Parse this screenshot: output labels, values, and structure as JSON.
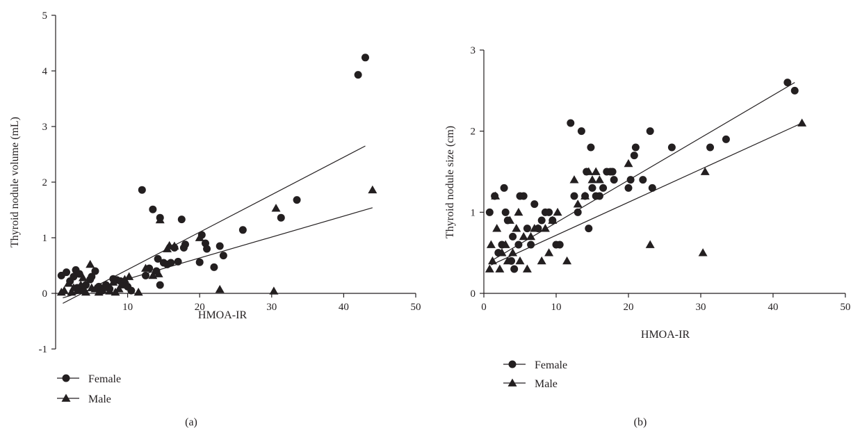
{
  "chart_data": [
    {
      "type": "scatter",
      "panel_label": "(a)",
      "xlabel": "HMOA-IR",
      "ylabel": "Thyroid nodule volume (mL)",
      "xlim": [
        0,
        50
      ],
      "ylim": [
        -1,
        5
      ],
      "xticks": [
        10,
        20,
        30,
        40,
        50
      ],
      "yticks": [
        -1,
        0,
        1,
        2,
        3,
        4,
        5
      ],
      "grid": false,
      "legend_position": "bottom-left",
      "series": [
        {
          "name": "Female",
          "marker": "circle",
          "points": [
            [
              0.8,
              0.32
            ],
            [
              1.5,
              0.38
            ],
            [
              2.0,
              0.22
            ],
            [
              2.5,
              0.3
            ],
            [
              2.8,
              0.42
            ],
            [
              3.0,
              0.1
            ],
            [
              3.3,
              0.35
            ],
            [
              3.8,
              0.05
            ],
            [
              4.2,
              0.15
            ],
            [
              4.8,
              0.25
            ],
            [
              5.0,
              0.3
            ],
            [
              5.5,
              0.4
            ],
            [
              6.0,
              0.12
            ],
            [
              6.5,
              0.05
            ],
            [
              7.0,
              0.15
            ],
            [
              7.5,
              0.08
            ],
            [
              8.0,
              0.26
            ],
            [
              8.5,
              0.24
            ],
            [
              9.0,
              0.22
            ],
            [
              9.5,
              0.2
            ],
            [
              10.0,
              0.12
            ],
            [
              10.5,
              0.05
            ],
            [
              12.0,
              1.86
            ],
            [
              12.5,
              0.32
            ],
            [
              13.0,
              0.45
            ],
            [
              13.5,
              1.51
            ],
            [
              14.0,
              0.4
            ],
            [
              14.2,
              0.62
            ],
            [
              14.5,
              1.36
            ],
            [
              14.5,
              0.15
            ],
            [
              15.0,
              0.55
            ],
            [
              15.5,
              0.52
            ],
            [
              16.0,
              0.55
            ],
            [
              16.5,
              0.82
            ],
            [
              17.0,
              0.57
            ],
            [
              17.5,
              1.33
            ],
            [
              17.8,
              0.82
            ],
            [
              18.0,
              0.88
            ],
            [
              20.0,
              0.56
            ],
            [
              20.3,
              1.05
            ],
            [
              20.8,
              0.9
            ],
            [
              21.0,
              0.8
            ],
            [
              22.0,
              0.47
            ],
            [
              22.8,
              0.85
            ],
            [
              23.3,
              0.68
            ],
            [
              26.0,
              1.14
            ],
            [
              31.3,
              1.36
            ],
            [
              33.5,
              1.68
            ],
            [
              42.0,
              3.93
            ],
            [
              43.0,
              4.24
            ]
          ]
        },
        {
          "name": "Male",
          "marker": "triangle",
          "points": [
            [
              0.8,
              0.02
            ],
            [
              1.2,
              0.05
            ],
            [
              1.8,
              0.18
            ],
            [
              2.2,
              0.02
            ],
            [
              2.5,
              0.1
            ],
            [
              3.0,
              0.05
            ],
            [
              3.5,
              0.15
            ],
            [
              3.8,
              0.28
            ],
            [
              4.2,
              0.02
            ],
            [
              4.8,
              0.52
            ],
            [
              5.0,
              0.1
            ],
            [
              5.5,
              0.08
            ],
            [
              6.0,
              0.02
            ],
            [
              6.5,
              0.06
            ],
            [
              7.0,
              0.12
            ],
            [
              7.5,
              0.04
            ],
            [
              8.0,
              0.2
            ],
            [
              8.3,
              0.02
            ],
            [
              8.8,
              0.08
            ],
            [
              9.2,
              0.15
            ],
            [
              9.6,
              0.25
            ],
            [
              10.2,
              0.3
            ],
            [
              11.5,
              0.02
            ],
            [
              12.5,
              0.45
            ],
            [
              13.5,
              0.32
            ],
            [
              14.3,
              0.35
            ],
            [
              14.5,
              1.32
            ],
            [
              15.5,
              0.8
            ],
            [
              15.8,
              0.86
            ],
            [
              16.5,
              0.85
            ],
            [
              20.0,
              1.0
            ],
            [
              22.8,
              0.07
            ],
            [
              30.3,
              0.04
            ],
            [
              30.6,
              1.53
            ],
            [
              44.0,
              1.86
            ]
          ]
        }
      ],
      "fit_lines": [
        {
          "series": "Female",
          "x": [
            1,
            43
          ],
          "y": [
            -0.18,
            2.65
          ]
        },
        {
          "series": "Male",
          "x": [
            1,
            44
          ],
          "y": [
            -0.08,
            1.54
          ]
        }
      ]
    },
    {
      "type": "scatter",
      "panel_label": "(b)",
      "xlabel": "HMOA-IR",
      "ylabel": "Thyroid nodule size (cm)",
      "xlim": [
        0,
        50
      ],
      "ylim": [
        0,
        3
      ],
      "xticks": [
        0,
        10,
        20,
        30,
        40,
        50
      ],
      "yticks": [
        0,
        1,
        2,
        3
      ],
      "grid": false,
      "legend_position": "bottom-left",
      "series": [
        {
          "name": "Female",
          "marker": "circle",
          "points": [
            [
              0.8,
              1.0
            ],
            [
              1.5,
              1.2
            ],
            [
              2.0,
              0.5
            ],
            [
              2.5,
              0.6
            ],
            [
              2.8,
              1.3
            ],
            [
              3.0,
              1.0
            ],
            [
              3.3,
              0.9
            ],
            [
              3.8,
              0.4
            ],
            [
              4.0,
              0.7
            ],
            [
              4.2,
              0.3
            ],
            [
              4.8,
              0.6
            ],
            [
              5.0,
              1.2
            ],
            [
              5.5,
              1.2
            ],
            [
              6.0,
              0.8
            ],
            [
              6.5,
              0.6
            ],
            [
              7.0,
              1.1
            ],
            [
              7.5,
              0.8
            ],
            [
              8.0,
              0.9
            ],
            [
              8.5,
              1.0
            ],
            [
              9.0,
              1.0
            ],
            [
              9.5,
              0.9
            ],
            [
              10.0,
              0.6
            ],
            [
              10.5,
              0.6
            ],
            [
              12.0,
              2.1
            ],
            [
              12.5,
              1.2
            ],
            [
              13.0,
              1.0
            ],
            [
              13.5,
              2.0
            ],
            [
              14.0,
              1.2
            ],
            [
              14.2,
              1.5
            ],
            [
              14.5,
              0.8
            ],
            [
              14.8,
              1.8
            ],
            [
              15.0,
              1.3
            ],
            [
              15.5,
              1.2
            ],
            [
              16.0,
              1.2
            ],
            [
              16.5,
              1.3
            ],
            [
              17.0,
              1.5
            ],
            [
              17.5,
              1.5
            ],
            [
              17.8,
              1.5
            ],
            [
              18.0,
              1.4
            ],
            [
              20.0,
              1.3
            ],
            [
              20.3,
              1.4
            ],
            [
              20.8,
              1.7
            ],
            [
              21.0,
              1.8
            ],
            [
              22.0,
              1.4
            ],
            [
              23.0,
              2.0
            ],
            [
              23.3,
              1.3
            ],
            [
              26.0,
              1.8
            ],
            [
              31.3,
              1.8
            ],
            [
              33.5,
              1.9
            ],
            [
              42.0,
              2.6
            ],
            [
              43.0,
              2.5
            ]
          ]
        },
        {
          "name": "Male",
          "marker": "triangle",
          "points": [
            [
              0.8,
              0.3
            ],
            [
              1.0,
              0.6
            ],
            [
              1.2,
              0.4
            ],
            [
              1.6,
              1.2
            ],
            [
              1.8,
              0.8
            ],
            [
              2.2,
              0.3
            ],
            [
              2.5,
              0.5
            ],
            [
              3.0,
              0.6
            ],
            [
              3.3,
              0.4
            ],
            [
              3.6,
              0.9
            ],
            [
              4.0,
              0.5
            ],
            [
              4.5,
              0.8
            ],
            [
              4.8,
              1.0
            ],
            [
              5.0,
              0.4
            ],
            [
              5.5,
              0.7
            ],
            [
              6.0,
              0.3
            ],
            [
              6.5,
              0.7
            ],
            [
              7.0,
              0.8
            ],
            [
              7.5,
              0.8
            ],
            [
              8.0,
              0.4
            ],
            [
              8.5,
              0.8
            ],
            [
              9.0,
              0.5
            ],
            [
              9.5,
              0.9
            ],
            [
              10.2,
              1.0
            ],
            [
              11.5,
              0.4
            ],
            [
              12.5,
              1.4
            ],
            [
              13.0,
              1.1
            ],
            [
              14.0,
              1.2
            ],
            [
              14.5,
              1.5
            ],
            [
              15.0,
              1.4
            ],
            [
              15.5,
              1.5
            ],
            [
              16.0,
              1.4
            ],
            [
              20.0,
              1.6
            ],
            [
              23.0,
              0.6
            ],
            [
              30.3,
              0.5
            ],
            [
              30.6,
              1.5
            ],
            [
              44.0,
              2.1
            ]
          ]
        }
      ],
      "fit_lines": [
        {
          "series": "Female",
          "x": [
            1,
            43
          ],
          "y": [
            0.4,
            2.6
          ]
        },
        {
          "series": "Male",
          "x": [
            1,
            44
          ],
          "y": [
            0.35,
            2.1
          ]
        }
      ]
    }
  ]
}
